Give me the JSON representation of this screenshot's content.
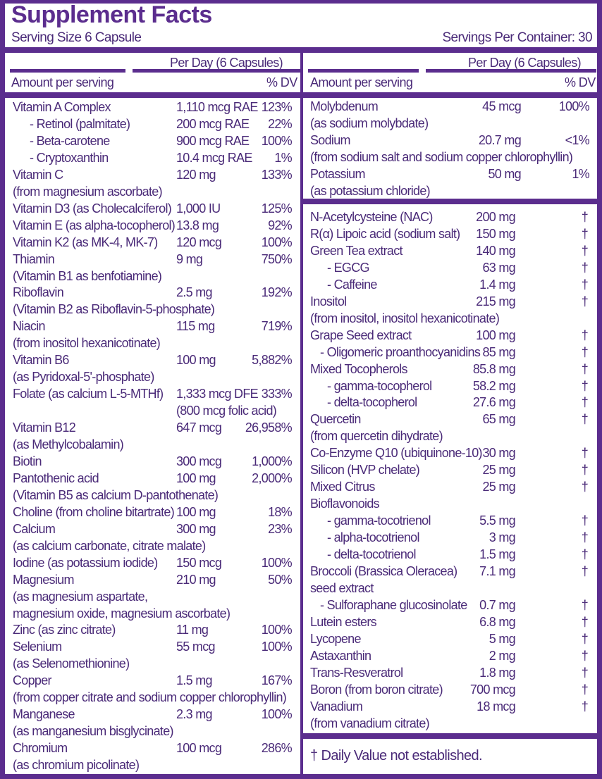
{
  "header": {
    "title": "Supplement Facts",
    "serving_size": "Serving Size 6 Capsule",
    "servings_per_container": "Servings Per Container: 30"
  },
  "columns": {
    "per_day": "Per Day (6 Capsules)",
    "amount_per_serving": "Amount per serving",
    "dv": "% DV"
  },
  "colors": {
    "brand": "#5b2d8e",
    "text": "#4a2a78"
  },
  "left_rows": [
    {
      "name": "Vitamin A Complex",
      "amount": "1,110 mcg RAE",
      "dv": "123%"
    },
    {
      "name": "- Retinol (palmitate)",
      "amount": "200 mcg RAE",
      "dv": "22%",
      "indent": 1
    },
    {
      "name": "- Beta-carotene",
      "amount": "900 mcg RAE",
      "dv": "100%",
      "indent": 1
    },
    {
      "name": "- Cryptoxanthin",
      "amount": "10.4 mcg RAE",
      "dv": "1%",
      "indent": 1
    },
    {
      "name": "Vitamin C",
      "amount": "120 mg",
      "dv": "133%"
    },
    {
      "name": "(from magnesium ascorbate)"
    },
    {
      "name": "Vitamin D3 (as Cholecalciferol)",
      "amount": "1,000 IU",
      "dv": "125%"
    },
    {
      "name": "Vitamin E (as alpha-tocopherol)",
      "amount": "13.8 mg",
      "dv": "92%"
    },
    {
      "name": "Vitamin K2 (as MK-4, MK-7)",
      "amount": "120 mcg",
      "dv": "100%"
    },
    {
      "name": "Thiamin",
      "amount": "9 mg",
      "dv": "750%"
    },
    {
      "name": "(Vitamin B1 as benfotiamine)"
    },
    {
      "name": "Riboflavin",
      "amount": "2.5 mg",
      "dv": "192%"
    },
    {
      "name": "(Vitamin B2 as Riboflavin-5-phosphate)"
    },
    {
      "name": "Niacin",
      "amount": "115 mg",
      "dv": "719%"
    },
    {
      "name": "(from inositol hexanicotinate)"
    },
    {
      "name": "Vitamin B6",
      "amount": "100 mg",
      "dv": "5,882%"
    },
    {
      "name": "(as Pyridoxal-5'-phosphate)"
    },
    {
      "name": "Folate (as calcium L-5-MTHf)",
      "amount": "1,333 mcg DFE",
      "dv": "333%"
    },
    {
      "name": "",
      "amount": "(800 mcg folic acid)"
    },
    {
      "name": "Vitamin B12",
      "amount": "647 mcg",
      "dv": "26,958%"
    },
    {
      "name": "(as Methylcobalamin)"
    },
    {
      "name": "Biotin",
      "amount": "300 mcg",
      "dv": "1,000%"
    },
    {
      "name": "Pantothenic acid",
      "amount": "100 mg",
      "dv": "2,000%"
    },
    {
      "name": "(Vitamin B5 as calcium D-pantothenate)"
    },
    {
      "name": "Choline (from choline bitartrate)",
      "amount": "100 mg",
      "dv": "18%"
    },
    {
      "name": "Calcium",
      "amount": "300 mg",
      "dv": "23%"
    },
    {
      "name": "(as calcium carbonate, citrate malate)"
    },
    {
      "name": "Iodine (as potassium iodide)",
      "amount": "150 mcg",
      "dv": "100%"
    },
    {
      "name": "Magnesium",
      "amount": "210 mg",
      "dv": "50%"
    },
    {
      "name": "(as magnesium aspartate,"
    },
    {
      "name": "magnesium oxide, magnesium ascorbate)"
    },
    {
      "name": "Zinc (as zinc citrate)",
      "amount": "11 mg",
      "dv": "100%"
    },
    {
      "name": "Selenium",
      "amount": "55 mcg",
      "dv": "100%"
    },
    {
      "name": "(as Selenomethionine)"
    },
    {
      "name": "Copper",
      "amount": "1.5 mg",
      "dv": "167%"
    },
    {
      "name": "(from copper citrate and sodium copper chlorophyllin)"
    },
    {
      "name": "Manganese",
      "amount": "2.3 mg",
      "dv": "100%"
    },
    {
      "name": "(as manganesium bisglycinate)"
    },
    {
      "name": "Chromium",
      "amount": "100 mcg",
      "dv": "286%"
    },
    {
      "name": "(as chromium picolinate)"
    }
  ],
  "right_rows_top": [
    {
      "name": "Molybdenum",
      "amount": "45 mcg",
      "dv": "100%"
    },
    {
      "name": "(as sodium molybdate)"
    },
    {
      "name": "Sodium",
      "amount": "20.7 mg",
      "dv": "<1%"
    },
    {
      "name": "(from sodium salt and sodium copper chlorophyllin)"
    },
    {
      "name": "Potassium",
      "amount": "50 mg",
      "dv": "1%"
    },
    {
      "name": "(as potassium chloride)"
    }
  ],
  "right_rows_bottom": [
    {
      "name": "N-Acetylcysteine (NAC)",
      "amount": "200 mg",
      "dv": "†"
    },
    {
      "name": "R(α) Lipoic acid (sodium salt)",
      "amount": "150 mg",
      "dv": "†"
    },
    {
      "name": "Green Tea extract",
      "amount": "140 mg",
      "dv": "†"
    },
    {
      "name": "- EGCG",
      "amount": "63 mg",
      "dv": "†",
      "indent": 1
    },
    {
      "name": "- Caffeine",
      "amount": "1.4 mg",
      "dv": "†",
      "indent": 1
    },
    {
      "name": "Inositol",
      "amount": "215 mg",
      "dv": "†"
    },
    {
      "name": "(from inositol, inositol hexanicotinate)"
    },
    {
      "name": "Grape Seed extract",
      "amount": "100 mg",
      "dv": "†"
    },
    {
      "name": "- Oligomeric proanthocyanidins",
      "amount": "85 mg",
      "dv": "†",
      "indent": 2
    },
    {
      "name": "Mixed Tocopherols",
      "amount": "85.8 mg",
      "dv": "†"
    },
    {
      "name": "- gamma-tocopherol",
      "amount": "58.2 mg",
      "dv": "†",
      "indent": 1
    },
    {
      "name": "- delta-tocopherol",
      "amount": "27.6 mg",
      "dv": "†",
      "indent": 1
    },
    {
      "name": "Quercetin",
      "amount": "65 mg",
      "dv": "†"
    },
    {
      "name": "(from quercetin dihydrate)"
    },
    {
      "name": "Co-Enzyme Q10 (ubiquinone-10)",
      "amount": "30 mg",
      "dv": "†"
    },
    {
      "name": "Silicon (HVP chelate)",
      "amount": "25 mg",
      "dv": "†"
    },
    {
      "name": "Mixed Citrus",
      "amount": "25 mg",
      "dv": "†"
    },
    {
      "name": "Bioflavonoids"
    },
    {
      "name": "- gamma-tocotrienol",
      "amount": "5.5 mg",
      "dv": "†",
      "indent": 1
    },
    {
      "name": "- alpha-tocotrienol",
      "amount": "3 mg",
      "dv": "†",
      "indent": 1
    },
    {
      "name": "- delta-tocotrienol",
      "amount": "1.5 mg",
      "dv": "†",
      "indent": 1
    },
    {
      "name": "Broccoli (Brassica Oleracea)",
      "amount": "7.1 mg",
      "dv": "†"
    },
    {
      "name": "seed extract"
    },
    {
      "name": "- Sulforaphane glucosinolate",
      "amount": "0.7 mg",
      "dv": "†",
      "indent": 2
    },
    {
      "name": "Lutein esters",
      "amount": "6.8 mg",
      "dv": "†"
    },
    {
      "name": "Lycopene",
      "amount": "5 mg",
      "dv": "†"
    },
    {
      "name": "Astaxanthin",
      "amount": "2 mg",
      "dv": "†"
    },
    {
      "name": "Trans-Resveratrol",
      "amount": "1.8 mg",
      "dv": "†"
    },
    {
      "name": "Boron (from boron citrate)",
      "amount": "700 mcg",
      "dv": "†"
    },
    {
      "name": "Vanadium",
      "amount": "18 mcg",
      "dv": "†"
    },
    {
      "name": "(from vanadium citrate)"
    }
  ],
  "footnote": "† Daily Value not established."
}
